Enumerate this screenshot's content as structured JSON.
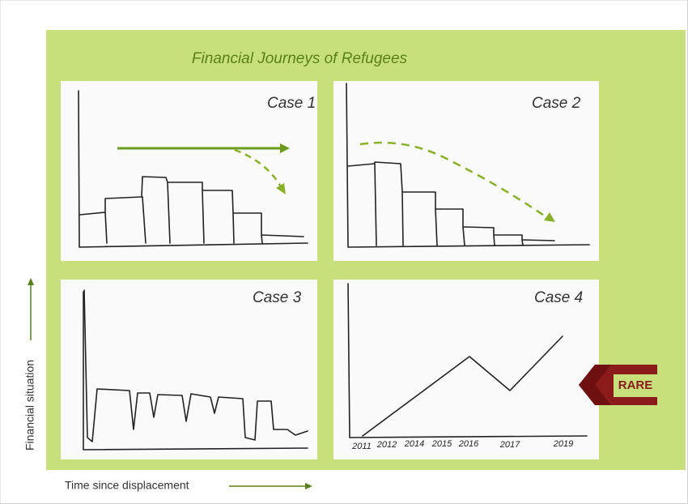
{
  "title": "Financial Journeys of Refugees",
  "cases": [
    {
      "label": "Case 1"
    },
    {
      "label": "Case 2"
    },
    {
      "label": "Case 3"
    },
    {
      "label": "Case 4"
    }
  ],
  "case4_year_labels": [
    "2011",
    "2012",
    "2014",
    "2015",
    "2016",
    "2017",
    "2019"
  ],
  "rare": "RARE",
  "y_axis_label": "Financial situation",
  "x_axis_label": "Time since displacement"
}
